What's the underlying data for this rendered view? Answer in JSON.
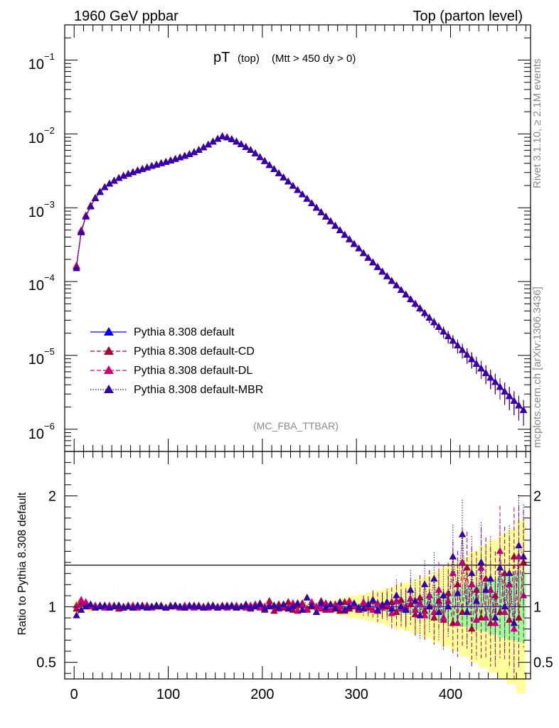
{
  "header": {
    "left": "1960 GeV ppbar",
    "right": "Top (parton level)"
  },
  "side_labels": {
    "rivet": "Rivet 3.1.10, ≥ 2.1M events",
    "mcplots": "mcplots.cern.ch [arXiv:1306.3436]"
  },
  "chart_data": [
    {
      "type": "line",
      "title": "pT",
      "title_sub": "(top)",
      "title_cut": "(Mtt > 450 dy > 0)",
      "analysis_tag": "(MC_FBA_TTBAR)",
      "yscale": "log",
      "ylim": [
        5e-07,
        0.3
      ],
      "xlim": [
        -10,
        485
      ],
      "ytick_labels": [
        {
          "base": "10",
          "exp": "−6",
          "value": 1e-06
        },
        {
          "base": "10",
          "exp": "−5",
          "value": 1e-05
        },
        {
          "base": "10",
          "exp": "−4",
          "value": 0.0001
        },
        {
          "base": "10",
          "exp": "−3",
          "value": 0.001
        },
        {
          "base": "10",
          "exp": "−2",
          "value": 0.01
        },
        {
          "base": "10",
          "exp": "−1",
          "value": 0.1
        }
      ],
      "x": [
        2.5,
        7.5,
        12.5,
        17.5,
        22.5,
        27.5,
        32.5,
        37.5,
        42.5,
        47.5,
        52.5,
        57.5,
        62.5,
        67.5,
        72.5,
        77.5,
        82.5,
        87.5,
        92.5,
        97.5,
        102.5,
        107.5,
        112.5,
        117.5,
        122.5,
        127.5,
        132.5,
        137.5,
        142.5,
        147.5,
        152.5,
        157.5,
        162.5,
        167.5,
        172.5,
        177.5,
        182.5,
        187.5,
        192.5,
        197.5,
        202.5,
        207.5,
        212.5,
        217.5,
        222.5,
        227.5,
        232.5,
        237.5,
        242.5,
        247.5,
        252.5,
        257.5,
        262.5,
        267.5,
        272.5,
        277.5,
        282.5,
        287.5,
        292.5,
        297.5,
        302.5,
        307.5,
        312.5,
        317.5,
        322.5,
        327.5,
        332.5,
        337.5,
        342.5,
        347.5,
        352.5,
        357.5,
        362.5,
        367.5,
        372.5,
        377.5,
        382.5,
        387.5,
        392.5,
        397.5,
        402.5,
        407.5,
        412.5,
        417.5,
        422.5,
        427.5,
        432.5,
        437.5,
        442.5,
        447.5,
        452.5,
        457.5,
        462.5,
        467.5,
        472.5,
        477.5
      ],
      "series": [
        {
          "name": "Pythia 8.308 default",
          "color": "#0000ee",
          "dash": "",
          "values": [
            0.00016,
            0.00048,
            0.00077,
            0.00105,
            0.00134,
            0.00162,
            0.00188,
            0.0021,
            0.0023,
            0.0025,
            0.00268,
            0.00285,
            0.003,
            0.00317,
            0.00332,
            0.00348,
            0.00364,
            0.0038,
            0.00397,
            0.00414,
            0.00433,
            0.00454,
            0.00476,
            0.005,
            0.00527,
            0.0056,
            0.006,
            0.0065,
            0.0071,
            0.0078,
            0.0085,
            0.0092,
            0.0089,
            0.0084,
            0.0078,
            0.0072,
            0.0066,
            0.006,
            0.0054,
            0.0048,
            0.00425,
            0.00375,
            0.0033,
            0.0029,
            0.00255,
            0.00224,
            0.00196,
            0.00172,
            0.0015,
            0.00131,
            0.00114,
            0.00099,
            0.00086,
            0.00075,
            0.00065,
            0.000565,
            0.00049,
            0.000425,
            0.00037,
            0.00032,
            0.000278,
            0.00024,
            0.000208,
            0.00018,
            0.000156,
            0.000135,
            0.000117,
            0.000101,
            8.8e-05,
            7.6e-05,
            6.6e-05,
            5.7e-05,
            4.95e-05,
            4.3e-05,
            3.7e-05,
            3.2e-05,
            2.78e-05,
            2.4e-05,
            2.08e-05,
            1.8e-05,
            1.56e-05,
            1.35e-05,
            1.17e-05,
            1.01e-05,
            8.8e-06,
            7.6e-06,
            6.6e-06,
            5.7e-06,
            4.95e-06,
            4.3e-06,
            3.7e-06,
            3.2e-06,
            2.78e-06,
            2.4e-06,
            2.08e-06,
            1.8e-06
          ]
        },
        {
          "name": "Pythia 8.308 default-CD",
          "color": "#aa0033",
          "dash": "6,3",
          "values": [
            0.000163,
            0.00049,
            0.00078,
            0.00106,
            0.00135,
            0.00163,
            0.00188,
            0.0021,
            0.0023,
            0.0025,
            0.00268,
            0.00285,
            0.003,
            0.00317,
            0.00332,
            0.00348,
            0.00364,
            0.0038,
            0.00397,
            0.00414,
            0.00433,
            0.00454,
            0.00476,
            0.005,
            0.00527,
            0.0056,
            0.006,
            0.0065,
            0.0071,
            0.0078,
            0.0085,
            0.0092,
            0.0089,
            0.0084,
            0.0078,
            0.0072,
            0.0066,
            0.006,
            0.0054,
            0.0048,
            0.00425,
            0.00375,
            0.0033,
            0.0029,
            0.00255,
            0.00224,
            0.00196,
            0.00172,
            0.0015,
            0.00131,
            0.00114,
            0.00099,
            0.00086,
            0.00075,
            0.00065,
            0.000565,
            0.00049,
            0.000425,
            0.00037,
            0.00032,
            0.000278,
            0.00024,
            0.000208,
            0.00018,
            0.000156,
            0.000135,
            0.000117,
            0.000101,
            8.8e-05,
            7.6e-05,
            6.6e-05,
            5.7e-05,
            4.95e-05,
            4.3e-05,
            3.7e-05,
            3.2e-05,
            2.78e-05,
            2.4e-05,
            2.08e-05,
            1.8e-05,
            1.56e-05,
            1.35e-05,
            1.17e-05,
            1.01e-05,
            8.8e-06,
            7.6e-06,
            6.6e-06,
            5.7e-06,
            4.95e-06,
            4.3e-06,
            3.7e-06,
            3.2e-06,
            2.78e-06,
            2.4e-06,
            2.08e-06,
            1.8e-06
          ]
        },
        {
          "name": "Pythia 8.308 default-DL",
          "color": "#cc0077",
          "dash": "6,3",
          "values": [
            0.000158,
            0.00047,
            0.00076,
            0.00104,
            0.00134,
            0.00162,
            0.00188,
            0.0021,
            0.0023,
            0.0025,
            0.00268,
            0.00285,
            0.003,
            0.00317,
            0.00332,
            0.00348,
            0.00364,
            0.0038,
            0.00397,
            0.00414,
            0.00433,
            0.00454,
            0.00476,
            0.005,
            0.00527,
            0.0056,
            0.006,
            0.0065,
            0.0071,
            0.0078,
            0.0085,
            0.0092,
            0.0089,
            0.0084,
            0.0078,
            0.0072,
            0.0066,
            0.006,
            0.0054,
            0.0048,
            0.00425,
            0.00375,
            0.0033,
            0.0029,
            0.00255,
            0.00224,
            0.00196,
            0.00172,
            0.0015,
            0.00131,
            0.00114,
            0.00099,
            0.00086,
            0.00075,
            0.00065,
            0.000565,
            0.00049,
            0.000425,
            0.00037,
            0.00032,
            0.000278,
            0.00024,
            0.000208,
            0.00018,
            0.000156,
            0.000135,
            0.000117,
            0.000101,
            8.8e-05,
            7.6e-05,
            6.6e-05,
            5.7e-05,
            4.95e-05,
            4.3e-05,
            3.7e-05,
            3.2e-05,
            2.78e-05,
            2.4e-05,
            2.08e-05,
            1.8e-05,
            1.56e-05,
            1.35e-05,
            1.17e-05,
            1.01e-05,
            8.8e-06,
            7.6e-06,
            6.6e-06,
            5.7e-06,
            4.95e-06,
            4.3e-06,
            3.7e-06,
            3.2e-06,
            2.78e-06,
            2.4e-06,
            2.08e-06,
            1.8e-06
          ]
        },
        {
          "name": "Pythia 8.308 default-MBR",
          "color": "#3300aa",
          "dash": "1.5,2",
          "values": [
            0.00015,
            0.00046,
            0.00075,
            0.00103,
            0.00133,
            0.00162,
            0.00188,
            0.0021,
            0.0023,
            0.0025,
            0.00268,
            0.00285,
            0.003,
            0.00317,
            0.00332,
            0.00348,
            0.00364,
            0.0038,
            0.00397,
            0.00414,
            0.00433,
            0.00454,
            0.00476,
            0.005,
            0.00527,
            0.0056,
            0.006,
            0.0065,
            0.0071,
            0.0078,
            0.0085,
            0.0092,
            0.0089,
            0.0084,
            0.0078,
            0.0072,
            0.0066,
            0.006,
            0.0054,
            0.0048,
            0.00425,
            0.00375,
            0.0033,
            0.0029,
            0.00255,
            0.00224,
            0.00196,
            0.00172,
            0.0015,
            0.00131,
            0.00114,
            0.00099,
            0.00086,
            0.00075,
            0.00065,
            0.000565,
            0.00049,
            0.000425,
            0.00037,
            0.00032,
            0.000278,
            0.00024,
            0.000208,
            0.00018,
            0.000156,
            0.000135,
            0.000117,
            0.000101,
            8.8e-05,
            7.6e-05,
            6.6e-05,
            5.7e-05,
            4.95e-05,
            4.3e-05,
            3.7e-05,
            3.2e-05,
            2.78e-05,
            2.4e-05,
            2.08e-05,
            1.8e-05,
            1.56e-05,
            1.35e-05,
            1.17e-05,
            1.01e-05,
            8.8e-06,
            7.6e-06,
            6.6e-06,
            5.7e-06,
            4.95e-06,
            4.3e-06,
            3.7e-06,
            3.2e-06,
            2.78e-06,
            2.4e-06,
            2.08e-06,
            1.8e-06
          ]
        }
      ]
    },
    {
      "type": "line",
      "ylabel": "Ratio to Pythia 8.308 default",
      "ylim": [
        0.35,
        2.4
      ],
      "xlim": [
        -10,
        485
      ],
      "reference_line": 1,
      "xticks": [
        0,
        100,
        200,
        300,
        400
      ],
      "xtick_labels": [
        "0",
        "100",
        "200",
        "300",
        "400"
      ],
      "yticks": [
        0.5,
        1,
        2
      ],
      "ytick_labels": [
        "0.5",
        "1",
        "2"
      ],
      "band": {
        "x_edges": [
          0,
          10,
          20,
          30,
          40,
          50,
          60,
          70,
          80,
          90,
          100,
          110,
          120,
          130,
          140,
          150,
          160,
          170,
          180,
          190,
          200,
          210,
          220,
          230,
          240,
          250,
          260,
          270,
          280,
          290,
          300,
          310,
          320,
          330,
          340,
          350,
          360,
          370,
          380,
          390,
          400,
          410,
          420,
          430,
          440,
          450,
          460,
          470,
          480
        ],
        "green_halfwidth": [
          0.02,
          0.02,
          0.02,
          0.02,
          0.02,
          0.02,
          0.02,
          0.02,
          0.02,
          0.02,
          0.02,
          0.02,
          0.02,
          0.02,
          0.02,
          0.02,
          0.02,
          0.02,
          0.02,
          0.02,
          0.02,
          0.02,
          0.02,
          0.02,
          0.02,
          0.02,
          0.02,
          0.02,
          0.02,
          0.03,
          0.03,
          0.04,
          0.04,
          0.05,
          0.06,
          0.07,
          0.08,
          0.1,
          0.12,
          0.13,
          0.15,
          0.18,
          0.2,
          0.22,
          0.25,
          0.28,
          0.3,
          0.32
        ],
        "yellow_halfwidth": [
          0.06,
          0.04,
          0.03,
          0.03,
          0.03,
          0.03,
          0.03,
          0.03,
          0.03,
          0.03,
          0.03,
          0.03,
          0.03,
          0.03,
          0.03,
          0.03,
          0.03,
          0.03,
          0.03,
          0.03,
          0.03,
          0.03,
          0.03,
          0.03,
          0.04,
          0.04,
          0.05,
          0.06,
          0.08,
          0.1,
          0.11,
          0.13,
          0.15,
          0.17,
          0.2,
          0.22,
          0.25,
          0.28,
          0.32,
          0.36,
          0.4,
          0.45,
          0.5,
          0.55,
          0.6,
          0.65,
          0.7,
          0.78
        ]
      },
      "series": [
        {
          "name": "Pythia 8.308 default-CD",
          "values": [
            0.98,
            1.03,
            1.02,
            1.0,
            0.99,
            1.01,
            1.0,
            0.99,
            1.01,
            0.98,
            1.0,
            1.01,
            0.99,
            1.0,
            1.01,
            0.99,
            1.0,
            1.0,
            1.01,
            0.99,
            1.0,
            1.01,
            1.0,
            0.99,
            1.0,
            1.01,
            1.0,
            0.99,
            1.01,
            1.0,
            0.99,
            1.0,
            1.01,
            1.0,
            0.99,
            1.0,
            1.02,
            0.98,
            1.0,
            1.03,
            0.97,
            1.05,
            0.96,
            1.02,
            0.99,
            1.04,
            0.97,
            1.01,
            1.03,
            0.98,
            1.0,
            0.95,
            1.05,
            0.97,
            1.02,
            1.0,
            0.96,
            1.04,
            0.98,
            1.02,
            0.97,
            1.03,
            0.99,
            1.05,
            0.96,
            1.02,
            1.0,
            1.04,
            0.95,
            1.06,
            0.98,
            1.02,
            0.93,
            1.08,
            0.96,
            1.1,
            0.9,
            1.05,
            0.88,
            1.12,
            0.85,
            1.2,
            0.95,
            1.35,
            0.8,
            1.15,
            0.9,
            1.25,
            0.85,
            1.1,
            0.95,
            1.3,
            0.88,
            1.45,
            0.9,
            1.4
          ]
        },
        {
          "name": "Pythia 8.308 default-DL",
          "values": [
            1.01,
            1.06,
            1.04,
            1.0,
            1.01,
            1.0,
            0.99,
            1.01,
            1.0,
            1.01,
            0.99,
            1.0,
            1.01,
            0.99,
            1.0,
            1.01,
            0.99,
            1.01,
            1.0,
            0.99,
            1.01,
            1.0,
            0.99,
            1.01,
            1.0,
            0.99,
            1.01,
            1.0,
            0.99,
            1.01,
            1.0,
            1.01,
            0.99,
            1.0,
            1.01,
            1.0,
            0.99,
            1.01,
            1.02,
            0.99,
            1.0,
            1.02,
            1.0,
            0.98,
            1.01,
            0.99,
            1.03,
            0.96,
            1.01,
            0.97,
            1.04,
            1.0,
            0.98,
            1.03,
            0.97,
            1.02,
            1.0,
            0.96,
            1.05,
            1.0,
            0.98,
            1.04,
            1.01,
            0.97,
            1.03,
            0.99,
            1.02,
            0.94,
            1.05,
            0.98,
            1.0,
            1.07,
            0.97,
            1.03,
            0.92,
            1.1,
            0.95,
            1.15,
            0.9,
            1.05,
            1.3,
            0.85,
            1.4,
            0.95,
            1.2,
            0.88,
            1.35,
            0.9,
            1.15,
            0.85,
            1.5,
            0.95,
            1.2,
            0.8,
            1.45,
            1.1
          ]
        },
        {
          "name": "Pythia 8.308 default-MBR",
          "values": [
            0.92,
            0.97,
            1.0,
            1.02,
            0.99,
            1.0,
            1.01,
            0.99,
            1.0,
            1.01,
            0.99,
            1.0,
            0.99,
            1.01,
            1.0,
            0.99,
            1.0,
            1.01,
            1.0,
            0.99,
            1.0,
            1.01,
            1.0,
            0.99,
            1.01,
            1.0,
            1.0,
            0.99,
            1.0,
            1.01,
            0.99,
            1.0,
            1.0,
            1.01,
            0.99,
            1.0,
            1.01,
            0.99,
            1.0,
            1.02,
            0.98,
            1.0,
            1.01,
            0.99,
            1.02,
            0.98,
            1.0,
            1.03,
            0.97,
            1.08,
            1.01,
            0.95,
            1.03,
            0.99,
            1.02,
            0.98,
            1.04,
            0.97,
            1.0,
            1.03,
            0.99,
            0.98,
            1.02,
            1.06,
            0.97,
            1.01,
            1.04,
            0.98,
            1.1,
            1.0,
            0.97,
            1.15,
            1.05,
            0.92,
            1.2,
            1.0,
            1.25,
            0.95,
            1.1,
            1.0,
            1.45,
            1.12,
            1.65,
            0.95,
            1.3,
            1.05,
            1.4,
            1.15,
            1.25,
            0.9,
            1.35,
            1.0,
            1.3,
            0.85,
            1.55,
            1.45
          ]
        }
      ]
    }
  ]
}
